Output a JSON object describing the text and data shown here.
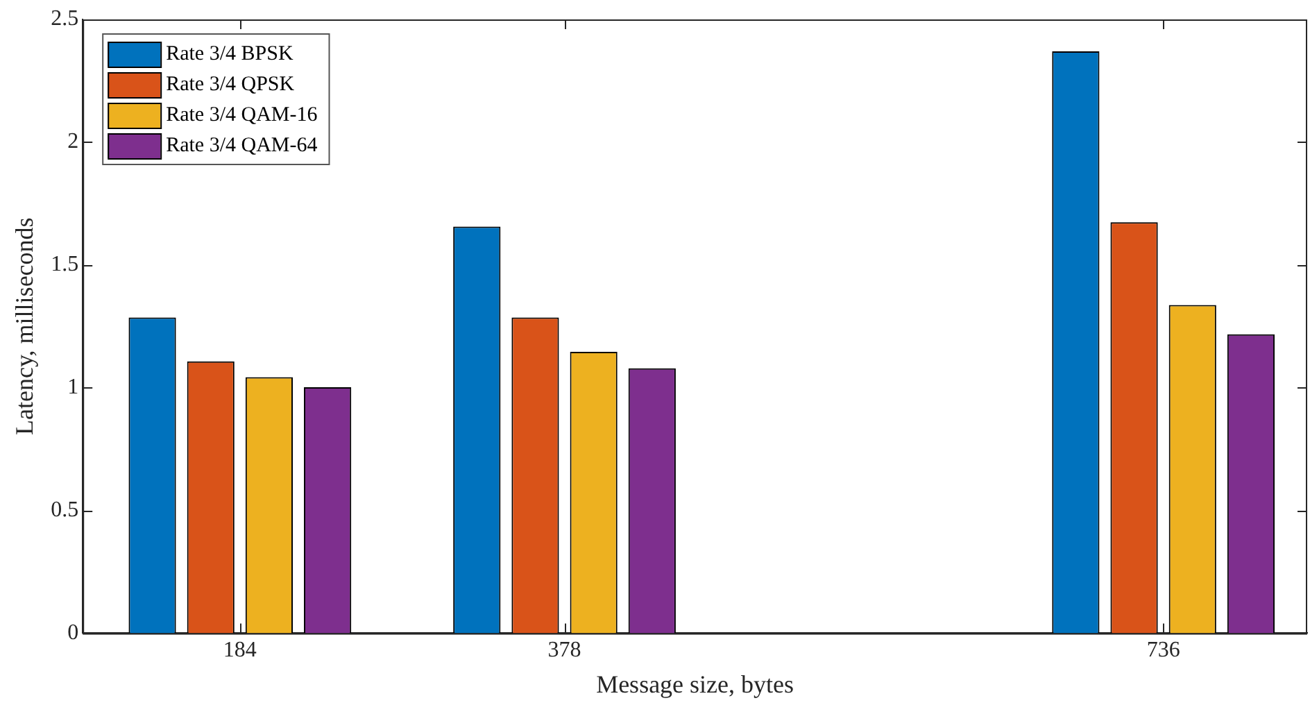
{
  "chart_data": {
    "type": "bar",
    "xlabel": "Message size, bytes",
    "ylabel": "Latency, milliseconds",
    "x": [
      184,
      378,
      736
    ],
    "xlim": [
      90,
      822
    ],
    "xticks": [
      184,
      378,
      736
    ],
    "ylim": [
      0,
      2.5
    ],
    "yticks": [
      0,
      0.5,
      1,
      1.5,
      2,
      2.5
    ],
    "series": [
      {
        "name": "Rate 3/4 BPSK",
        "color": "#0072bd",
        "values": [
          1.286,
          1.656,
          2.37
        ]
      },
      {
        "name": "Rate 3/4 QPSK",
        "color": "#d95319",
        "values": [
          1.107,
          1.286,
          1.674
        ]
      },
      {
        "name": "Rate 3/4 QAM-16",
        "color": "#edb120",
        "values": [
          1.043,
          1.146,
          1.337
        ]
      },
      {
        "name": "Rate 3/4 QAM-64",
        "color": "#7e2f8e",
        "values": [
          1.002,
          1.079,
          1.217
        ]
      }
    ],
    "grid": false,
    "legend": "top left"
  }
}
